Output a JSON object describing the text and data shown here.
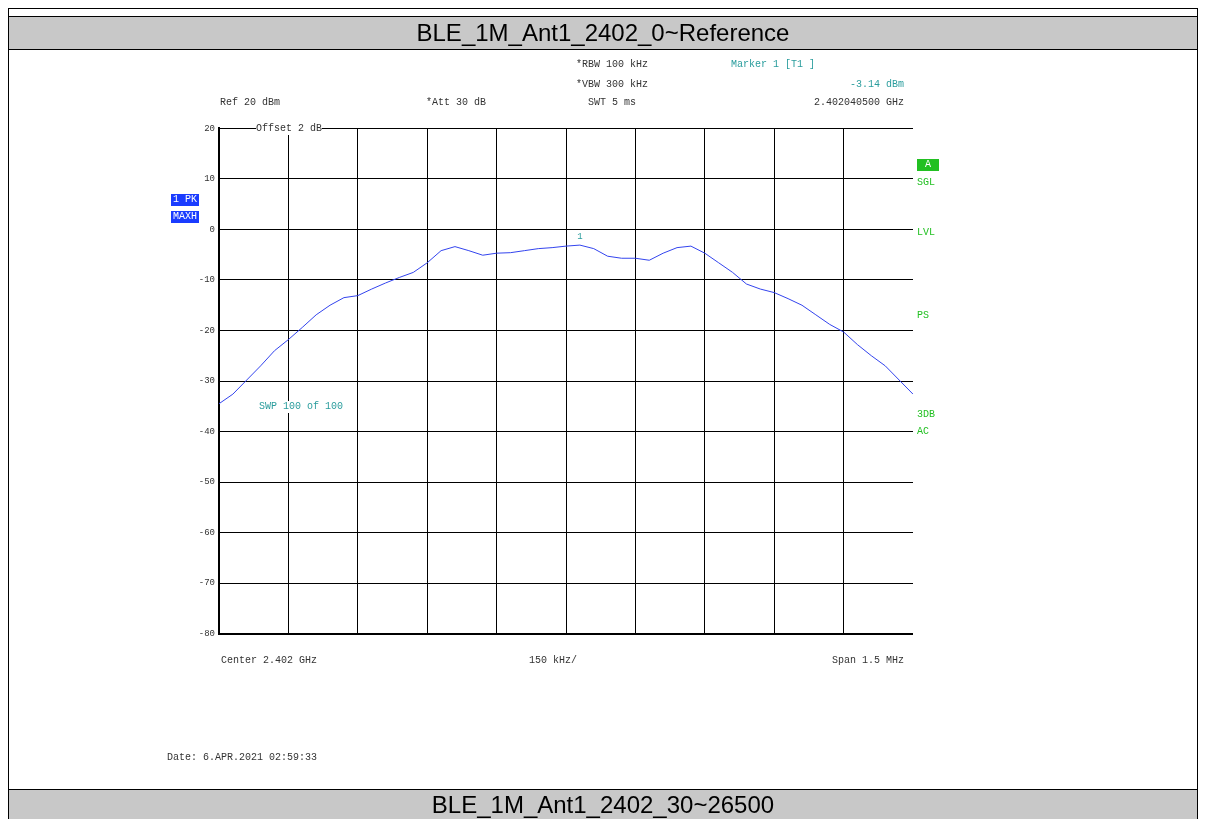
{
  "chart_data": {
    "type": "line",
    "title": "BLE_1M_Ant1_2402_0~Reference",
    "categories": [
      null,
      null,
      null,
      null,
      null,
      null,
      null,
      null,
      null,
      null,
      null,
      null,
      null,
      null,
      null,
      null,
      null,
      null,
      null,
      null,
      null,
      null,
      null,
      null,
      null,
      null,
      null,
      null,
      null,
      null,
      null,
      null,
      null,
      null,
      null,
      null,
      null,
      null,
      null,
      null,
      null,
      null,
      null,
      null,
      null,
      null,
      null,
      null,
      null,
      null,
      null
    ],
    "series": [
      {
        "color": "#3344ee",
        "values": [
          -34.5,
          -32.6,
          -29.8,
          -27,
          -24,
          -21.8,
          -19.4,
          -16.9,
          -15,
          -13.5,
          -13.1,
          -11.8,
          -10.6,
          -9.5,
          -8.5,
          -6.6,
          -4.2,
          -3.4,
          -4.2,
          -5.1,
          -4.7,
          -4.6,
          -4.2,
          -3.8,
          -3.6,
          -3.3,
          -3.1,
          -3.8,
          -5.3,
          -5.7,
          -5.7,
          -6.1,
          -4.7,
          -3.6,
          -3.3,
          -4.7,
          -6.6,
          -8.5,
          -10.8,
          -11.8,
          -12.5,
          -13.7,
          -15,
          -16.9,
          -18.8,
          -20.3,
          -22.8,
          -25,
          -27,
          -29.8,
          -32.6
        ]
      }
    ],
    "ylim": [
      -80,
      20
    ],
    "yticks": [
      -80,
      -70,
      -60,
      -50,
      -40,
      -30,
      -20,
      -10,
      0,
      10,
      20
    ],
    "grid": true,
    "legend": false,
    "marker": "none",
    "tick_labels": "y",
    "annotations": [
      "Ref 20 dBm",
      "*Att 30 dB",
      "*RBW 100 kHz",
      "*VBW 300 kHz",
      "SWT 5 ms",
      "Marker 1 [T1 ]",
      "-3.14 dBm",
      "2.402040500 GHz",
      "Offset 2 dB",
      "1 PK",
      "MAXH",
      "A",
      "SGL",
      "LVL",
      "PS",
      "3DB",
      "AC",
      "SWP 100 of 100",
      "Center 2.402 GHz",
      "150 kHz/",
      "Span 1.5 MHz",
      "Date: 6.APR.2021 02:59:33",
      "BLE_1M_Ant1_2402_30~26500",
      {
        "text": "1",
        "y": -3.14
      }
    ]
  }
}
